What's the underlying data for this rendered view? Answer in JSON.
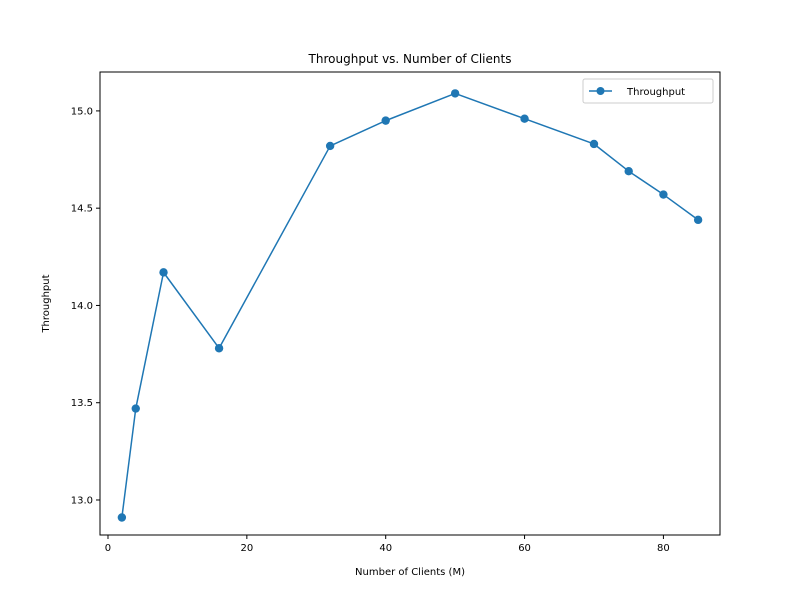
{
  "chart_data": {
    "type": "line",
    "title": "Throughput vs. Number of Clients",
    "xlabel": "Number of Clients (M)",
    "ylabel": "Throughput",
    "xlim": [
      -1.15,
      88.15
    ],
    "ylim": [
      12.82,
      15.2
    ],
    "xticks": [
      0,
      20,
      40,
      60,
      80
    ],
    "yticks": [
      13.0,
      13.5,
      14.0,
      14.5,
      15.0
    ],
    "grid": false,
    "legend": {
      "position": "top-right"
    },
    "series": [
      {
        "name": "Throughput",
        "color": "#1f77b4",
        "marker": "circle",
        "x": [
          2,
          4,
          8,
          16,
          32,
          40,
          50,
          60,
          70,
          75,
          80,
          85
        ],
        "y": [
          12.91,
          13.47,
          14.17,
          13.78,
          14.82,
          14.95,
          15.09,
          14.96,
          14.83,
          14.69,
          14.57,
          14.44
        ]
      }
    ]
  }
}
